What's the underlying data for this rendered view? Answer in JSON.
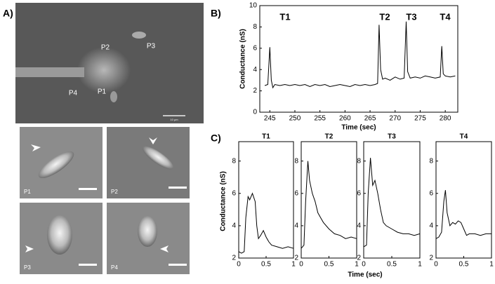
{
  "panel_a": {
    "label": "A)",
    "overview_labels": [
      "P2",
      "P3",
      "P4",
      "P1"
    ],
    "scale_text": "10 µm",
    "insets": [
      "P1",
      "P2",
      "P3",
      "P4"
    ]
  },
  "panel_b": {
    "label": "B)",
    "annotations": [
      "T1",
      "T2",
      "T3",
      "T4"
    ]
  },
  "panel_c": {
    "label": "C)",
    "x_label": "Time (sec)",
    "y_label": "Conductance (nS)"
  },
  "chart_data": [
    {
      "type": "line",
      "x_label": "Time (sec)",
      "y_label": "Conductance (nS)",
      "color": "#000",
      "x": [
        244,
        244.6,
        245,
        245.3,
        245.6,
        246,
        247,
        248,
        249,
        250,
        251,
        252,
        253,
        254,
        255,
        256,
        257,
        258,
        259,
        260,
        261,
        262,
        263,
        264,
        265,
        266,
        266.5,
        266.8,
        267.1,
        267.5,
        268,
        269,
        270,
        271,
        271.8,
        272.2,
        272.5,
        273,
        274,
        275,
        276,
        277,
        278,
        279,
        279.3,
        279.6,
        280,
        281,
        282
      ],
      "values": [
        2.5,
        2.6,
        6.1,
        3.0,
        2.3,
        2.6,
        2.5,
        2.6,
        2.5,
        2.6,
        2.5,
        2.6,
        2.4,
        2.6,
        2.5,
        2.6,
        2.4,
        2.5,
        2.6,
        2.5,
        2.4,
        2.6,
        2.5,
        2.6,
        2.5,
        2.6,
        2.7,
        8.2,
        4.0,
        3.1,
        3.2,
        3.0,
        3.3,
        3.1,
        3.2,
        8.5,
        3.8,
        3.2,
        3.3,
        3.2,
        3.4,
        3.3,
        3.2,
        3.3,
        6.2,
        3.6,
        3.4,
        3.3,
        3.4
      ],
      "xlim": [
        243,
        282.5
      ],
      "ylim": [
        0,
        10
      ],
      "xticks": [
        245,
        250,
        255,
        260,
        265,
        270,
        275,
        280
      ],
      "yticks": [
        0,
        2,
        4,
        6,
        8,
        10
      ]
    },
    {
      "type": "line",
      "title": "T1",
      "color": "#000",
      "x": [
        0,
        0.05,
        0.1,
        0.13,
        0.17,
        0.2,
        0.25,
        0.3,
        0.33,
        0.36,
        0.4,
        0.45,
        0.5,
        0.55,
        0.6,
        0.7,
        0.8,
        0.9,
        1
      ],
      "values": [
        2.4,
        2.3,
        2.4,
        4.5,
        5.8,
        5.6,
        6.0,
        5.5,
        4.0,
        3.2,
        3.4,
        3.7,
        3.3,
        3.0,
        2.8,
        2.7,
        2.6,
        2.7,
        2.6
      ],
      "xlim": [
        0,
        1
      ],
      "ylim": [
        2,
        9.2
      ],
      "xticks": [
        0,
        0.5,
        1
      ],
      "yticks": [
        2,
        4,
        6,
        8
      ]
    },
    {
      "type": "line",
      "title": "T2",
      "color": "#000",
      "x": [
        0,
        0.05,
        0.08,
        0.12,
        0.15,
        0.2,
        0.25,
        0.3,
        0.35,
        0.4,
        0.5,
        0.6,
        0.7,
        0.8,
        0.9,
        1
      ],
      "values": [
        2.6,
        2.8,
        5.5,
        8.0,
        6.8,
        6.0,
        5.5,
        4.8,
        4.5,
        4.2,
        3.8,
        3.5,
        3.4,
        3.2,
        3.3,
        3.2
      ],
      "xlim": [
        0,
        1
      ],
      "ylim": [
        2,
        9.2
      ],
      "xticks": [
        0,
        0.5,
        1
      ],
      "yticks": [
        2,
        4,
        6,
        8
      ]
    },
    {
      "type": "line",
      "title": "T3",
      "color": "#000",
      "x": [
        0,
        0.05,
        0.08,
        0.12,
        0.16,
        0.2,
        0.25,
        0.3,
        0.35,
        0.4,
        0.5,
        0.6,
        0.7,
        0.8,
        0.9,
        1
      ],
      "values": [
        2.7,
        2.8,
        6.0,
        8.2,
        6.5,
        6.8,
        6.0,
        5.0,
        4.2,
        4.0,
        3.8,
        3.6,
        3.5,
        3.5,
        3.4,
        3.5
      ],
      "xlim": [
        0,
        1
      ],
      "ylim": [
        2,
        9.2
      ],
      "xticks": [
        0,
        0.5,
        1
      ],
      "yticks": [
        2,
        4,
        6,
        8
      ]
    },
    {
      "type": "line",
      "title": "T4",
      "color": "#000",
      "x": [
        0,
        0.05,
        0.1,
        0.14,
        0.17,
        0.2,
        0.25,
        0.3,
        0.35,
        0.4,
        0.45,
        0.5,
        0.55,
        0.6,
        0.7,
        0.8,
        0.9,
        1
      ],
      "values": [
        3.2,
        3.3,
        3.6,
        5.5,
        6.2,
        4.8,
        4.0,
        4.2,
        4.1,
        4.3,
        4.2,
        3.8,
        3.4,
        3.5,
        3.5,
        3.4,
        3.5,
        3.5
      ],
      "xlim": [
        0,
        1
      ],
      "ylim": [
        2,
        9.2
      ],
      "xticks": [
        0,
        0.5,
        1
      ],
      "yticks": [
        2,
        4,
        6,
        8
      ]
    }
  ]
}
